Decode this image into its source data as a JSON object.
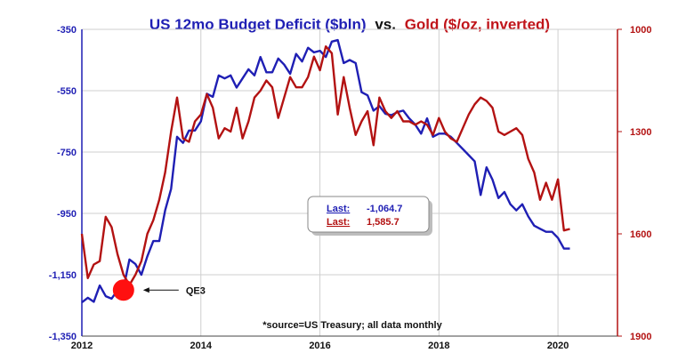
{
  "chart_data": {
    "type": "line",
    "title_part1": "US 12mo Budget Deficit ($bln)",
    "title_joiner": "vs.",
    "title_part2": "Gold ($/oz, inverted)",
    "x_ticks": [
      "2012",
      "2014",
      "2016",
      "2018",
      "2020"
    ],
    "xlim": [
      2012,
      2021
    ],
    "left_axis": {
      "ticks": [
        "-350",
        "-550",
        "-750",
        "-950",
        "-1,150",
        "-1,350"
      ],
      "ylim": [
        -1350,
        -350
      ]
    },
    "right_axis": {
      "ticks": [
        "1000",
        "1300",
        "1600",
        "1900"
      ],
      "ylim": [
        1000,
        1900
      ],
      "inverted": true
    },
    "colors": {
      "deficit": "#1f1fb4",
      "gold": "#b31212",
      "title_blue": "#1f1fb4",
      "title_red": "#c0141a",
      "marker": "#ff1010",
      "grid": "#cfcfcf"
    },
    "series": [
      {
        "key": "deficit",
        "axis": "left",
        "x": [
          2012.0,
          2012.1,
          2012.2,
          2012.3,
          2012.4,
          2012.5,
          2012.6,
          2012.7,
          2012.8,
          2012.9,
          2013.0,
          2013.1,
          2013.2,
          2013.3,
          2013.4,
          2013.5,
          2013.6,
          2013.7,
          2013.8,
          2013.9,
          2014.0,
          2014.1,
          2014.2,
          2014.3,
          2014.4,
          2014.5,
          2014.6,
          2014.7,
          2014.8,
          2014.9,
          2015.0,
          2015.1,
          2015.2,
          2015.3,
          2015.4,
          2015.5,
          2015.6,
          2015.7,
          2015.8,
          2015.9,
          2016.0,
          2016.1,
          2016.2,
          2016.3,
          2016.4,
          2016.5,
          2016.6,
          2016.7,
          2016.8,
          2016.9,
          2017.0,
          2017.1,
          2017.2,
          2017.3,
          2017.4,
          2017.5,
          2017.6,
          2017.7,
          2017.8,
          2017.9,
          2018.0,
          2018.1,
          2018.2,
          2018.3,
          2018.4,
          2018.5,
          2018.6,
          2018.7,
          2018.8,
          2018.9,
          2019.0,
          2019.1,
          2019.2,
          2019.3,
          2019.4,
          2019.5,
          2019.6,
          2019.7,
          2019.8,
          2019.9,
          2020.0,
          2020.1,
          2020.2
        ],
        "values": [
          -1240,
          -1225,
          -1238,
          -1185,
          -1220,
          -1228,
          -1200,
          -1195,
          -1100,
          -1115,
          -1150,
          -1090,
          -1040,
          -1040,
          -940,
          -870,
          -700,
          -720,
          -680,
          -680,
          -650,
          -560,
          -570,
          -500,
          -510,
          -500,
          -540,
          -510,
          -480,
          -500,
          -440,
          -490,
          -490,
          -445,
          -465,
          -495,
          -430,
          -455,
          -410,
          -425,
          -420,
          -440,
          -390,
          -385,
          -460,
          -450,
          -460,
          -555,
          -565,
          -615,
          -600,
          -625,
          -630,
          -620,
          -615,
          -640,
          -660,
          -690,
          -640,
          -700,
          -690,
          -690,
          -700,
          -720,
          -740,
          -760,
          -780,
          -890,
          -800,
          -840,
          -900,
          -880,
          -920,
          -940,
          -920,
          -960,
          -990,
          -1000,
          -1010,
          -1010,
          -1030,
          -1064.7,
          -1064.7
        ]
      },
      {
        "key": "gold",
        "axis": "right",
        "x": [
          2012.0,
          2012.1,
          2012.2,
          2012.3,
          2012.4,
          2012.5,
          2012.6,
          2012.7,
          2012.8,
          2012.9,
          2013.0,
          2013.1,
          2013.2,
          2013.3,
          2013.4,
          2013.5,
          2013.6,
          2013.7,
          2013.8,
          2013.9,
          2014.0,
          2014.1,
          2014.2,
          2014.3,
          2014.4,
          2014.5,
          2014.6,
          2014.7,
          2014.8,
          2014.9,
          2015.0,
          2015.1,
          2015.2,
          2015.3,
          2015.4,
          2015.5,
          2015.6,
          2015.7,
          2015.8,
          2015.9,
          2016.0,
          2016.1,
          2016.2,
          2016.3,
          2016.4,
          2016.5,
          2016.6,
          2016.7,
          2016.8,
          2016.9,
          2017.0,
          2017.1,
          2017.2,
          2017.3,
          2017.4,
          2017.5,
          2017.6,
          2017.7,
          2017.8,
          2017.9,
          2018.0,
          2018.1,
          2018.2,
          2018.3,
          2018.4,
          2018.5,
          2018.6,
          2018.7,
          2018.8,
          2018.9,
          2019.0,
          2019.1,
          2019.2,
          2019.3,
          2019.4,
          2019.5,
          2019.6,
          2019.7,
          2019.8,
          2019.9,
          2020.0,
          2020.1,
          2020.2
        ],
        "values": [
          1600,
          1730,
          1690,
          1680,
          1550,
          1580,
          1660,
          1720,
          1750,
          1720,
          1680,
          1600,
          1560,
          1500,
          1420,
          1300,
          1200,
          1320,
          1330,
          1270,
          1250,
          1190,
          1230,
          1320,
          1290,
          1300,
          1230,
          1320,
          1270,
          1200,
          1180,
          1150,
          1170,
          1260,
          1200,
          1140,
          1170,
          1170,
          1140,
          1080,
          1120,
          1050,
          1070,
          1250,
          1140,
          1230,
          1310,
          1270,
          1240,
          1340,
          1200,
          1240,
          1260,
          1240,
          1270,
          1270,
          1280,
          1270,
          1280,
          1310,
          1260,
          1300,
          1320,
          1330,
          1290,
          1250,
          1220,
          1200,
          1210,
          1230,
          1300,
          1310,
          1300,
          1290,
          1310,
          1380,
          1420,
          1500,
          1450,
          1500,
          1440,
          1590,
          1585.7
        ]
      }
    ],
    "legend": {
      "deficit_label": "Last:",
      "deficit_value": "-1,064.7",
      "gold_label": "Last:",
      "gold_value": "1,585.7"
    },
    "annotation": {
      "label": "QE3",
      "x": 2012.7,
      "y": -1200
    },
    "source_note": "*source=US Treasury; all data monthly"
  }
}
